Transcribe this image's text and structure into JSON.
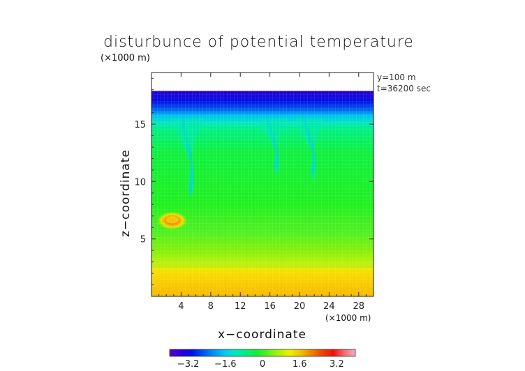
{
  "chart_data": {
    "type": "heatmap",
    "title": "disturbunce of potential temperature",
    "y_multiplier": "(×1000 m)",
    "x_multiplier": "(×1000 m)",
    "xlabel": "x−coordinate",
    "ylabel": "z−coordinate",
    "annotations": [
      "y=100 m",
      "t=36200 sec"
    ],
    "x_ticks": [
      4,
      8,
      12,
      16,
      20,
      24,
      28
    ],
    "y_ticks": [
      5,
      10,
      15
    ],
    "xlim": [
      0,
      30
    ],
    "ylim": [
      0,
      19.5
    ],
    "colorbar": {
      "range": [
        -4,
        4
      ],
      "tick_values": [
        -3.2,
        -1.6,
        0,
        1.6,
        3.2
      ],
      "tick_labels": [
        "−3.2",
        "−1.6",
        "0",
        "1.6",
        "3.2"
      ],
      "colors": [
        "#5a00c0",
        "#2a00d8",
        "#0010e8",
        "#0050f0",
        "#0090f0",
        "#00c8f0",
        "#00e8c0",
        "#00f080",
        "#10f030",
        "#60f020",
        "#b0f000",
        "#f0f000",
        "#f0c000",
        "#f08000",
        "#f04000",
        "#f01010",
        "#f07070",
        "#f0b0c0"
      ]
    },
    "field_summary": [
      {
        "z_range": [
          17.9,
          19.5
        ],
        "value": null,
        "note": "blank (no data)"
      },
      {
        "z_range": [
          16.5,
          17.9
        ],
        "value": -2.8
      },
      {
        "z_range": [
          15.5,
          16.5
        ],
        "value": -1.6
      },
      {
        "z_range": [
          14.5,
          15.5
        ],
        "value": -0.9
      },
      {
        "z_range": [
          6.0,
          14.5
        ],
        "value": 0.0
      },
      {
        "z_range": [
          2.5,
          6.0
        ],
        "value": 0.5
      },
      {
        "z_range": [
          1.5,
          2.5
        ],
        "value": 1.2
      },
      {
        "z_range": [
          0.0,
          1.5
        ],
        "value": 1.7
      }
    ],
    "features": [
      {
        "type": "warm-anomaly",
        "x": 2.8,
        "z": 6.6,
        "peak_value": 3.2
      },
      {
        "type": "cold-plume",
        "x": 5.0,
        "z_top": 15.5,
        "z_bottom": 8.5
      },
      {
        "type": "cold-plume",
        "x": 16.5,
        "z_top": 15.5,
        "z_bottom": 10.5
      },
      {
        "type": "cold-plume",
        "x": 21.5,
        "z_top": 15.5,
        "z_bottom": 10.0
      }
    ]
  }
}
